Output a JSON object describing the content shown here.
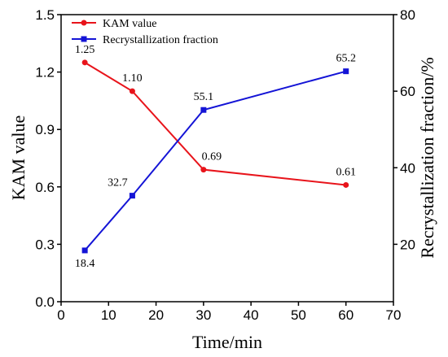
{
  "chart_data": {
    "type": "line",
    "x": [
      5,
      15,
      30,
      60
    ],
    "xlabel": "Time/min",
    "xlim": [
      0,
      70
    ],
    "xticks": [
      "0",
      "10",
      "20",
      "30",
      "40",
      "50",
      "60",
      "70"
    ],
    "ylabel_left": "KAM value",
    "ylim_left": [
      0.0,
      1.5
    ],
    "yticks_left": [
      "0.0",
      "0.3",
      "0.6",
      "0.9",
      "1.2",
      "1.5"
    ],
    "ylabel_right": "Recrystallization fraction/%",
    "ylim_right": [
      5,
      80
    ],
    "yticks_right": [
      "20",
      "40",
      "60",
      "80"
    ],
    "legend_position": "top-left",
    "series": [
      {
        "name": "KAM value",
        "axis": "left",
        "color": "#e8141b",
        "marker": "circle",
        "values": [
          1.25,
          1.1,
          0.69,
          0.61
        ],
        "labels": [
          "1.25",
          "1.10",
          "0.69",
          "0.61"
        ]
      },
      {
        "name": "Recrystallization fraction",
        "axis": "right",
        "color": "#1414d6",
        "marker": "square",
        "values": [
          18.4,
          32.7,
          55.1,
          65.2
        ],
        "labels": [
          "18.4",
          "32.7",
          "55.1",
          "65.2"
        ]
      }
    ]
  }
}
